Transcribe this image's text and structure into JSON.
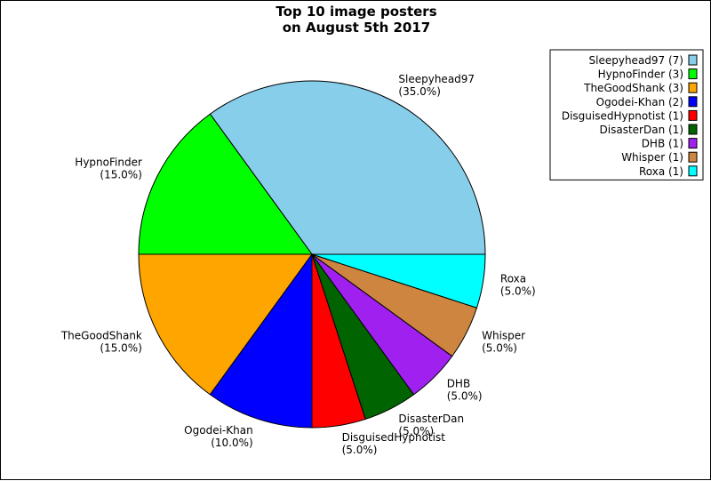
{
  "chart_data": {
    "type": "pie",
    "title_lines": [
      "Top 10 image posters",
      "on August 5th 2017"
    ],
    "start_angle_deg": 0,
    "direction": "counterclockwise",
    "legend_placement": "top-right",
    "slices": [
      {
        "name": "Sleepyhead97",
        "count": 7,
        "percent": 35.0,
        "pct_label": "(35.0%)",
        "legend_label": "Sleepyhead97 (7)",
        "color": "#87CEEB"
      },
      {
        "name": "HypnoFinder",
        "count": 3,
        "percent": 15.0,
        "pct_label": "(15.0%)",
        "legend_label": "HypnoFinder (3)",
        "color": "#00FF00"
      },
      {
        "name": "TheGoodShank",
        "count": 3,
        "percent": 15.0,
        "pct_label": "(15.0%)",
        "legend_label": "TheGoodShank (3)",
        "color": "#FFA500"
      },
      {
        "name": "Ogodei-Khan",
        "count": 2,
        "percent": 10.0,
        "pct_label": "(10.0%)",
        "legend_label": "Ogodei-Khan (2)",
        "color": "#0000FF"
      },
      {
        "name": "DisguisedHypnotist",
        "count": 1,
        "percent": 5.0,
        "pct_label": "(5.0%)",
        "legend_label": "DisguisedHypnotist (1)",
        "color": "#FF0000"
      },
      {
        "name": "DisasterDan",
        "count": 1,
        "percent": 5.0,
        "pct_label": "(5.0%)",
        "legend_label": "DisasterDan (1)",
        "color": "#006400"
      },
      {
        "name": "DHB",
        "count": 1,
        "percent": 5.0,
        "pct_label": "(5.0%)",
        "legend_label": "DHB (1)",
        "color": "#A020F0"
      },
      {
        "name": "Whisper",
        "count": 1,
        "percent": 5.0,
        "pct_label": "(5.0%)",
        "legend_label": "Whisper (1)",
        "color": "#CD853F"
      },
      {
        "name": "Roxa",
        "count": 1,
        "percent": 5.0,
        "pct_label": "(5.0%)",
        "legend_label": "Roxa (1)",
        "color": "#00FFFF"
      }
    ]
  }
}
